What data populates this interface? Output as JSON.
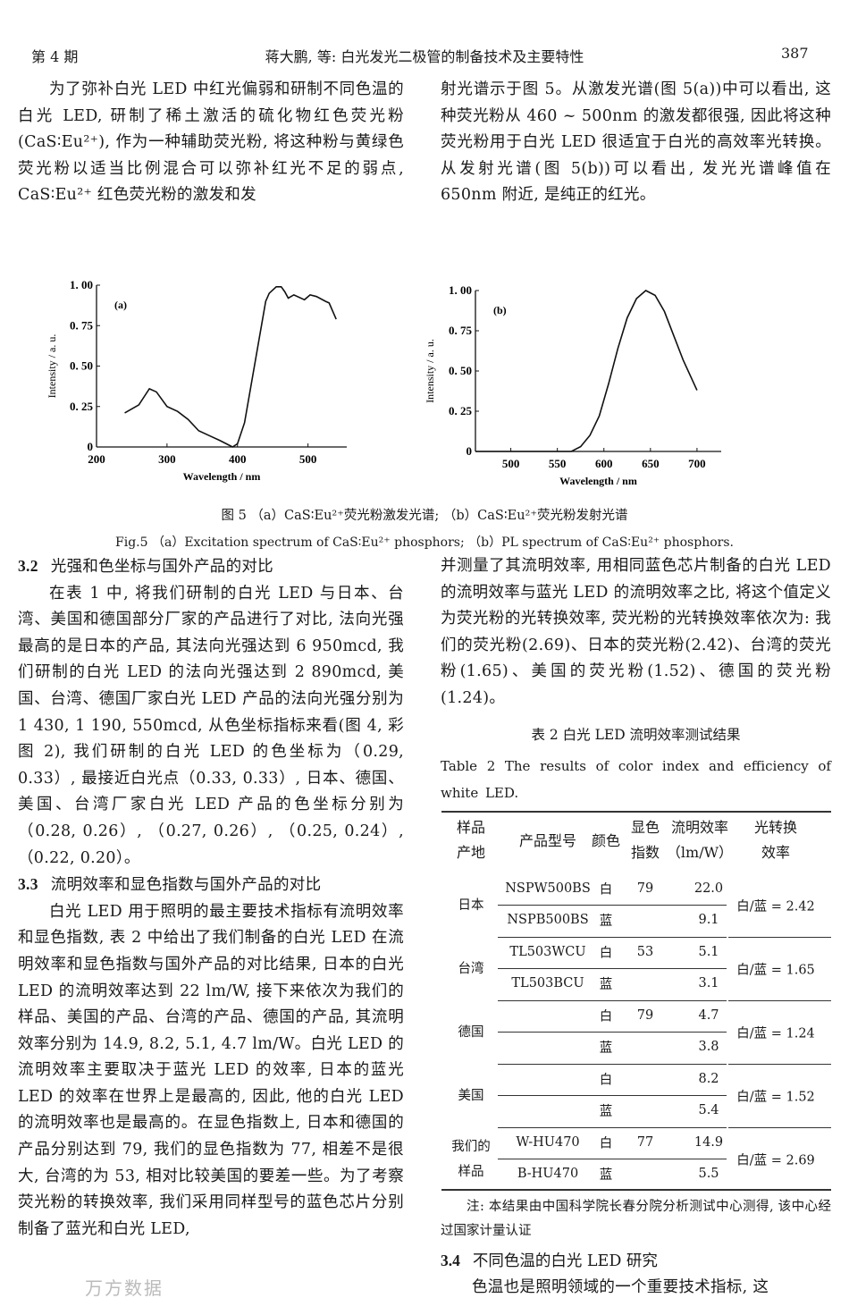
{
  "header": {
    "issue": "第 4 期",
    "title": "蒋大鹏, 等: 白光发光二极管的制备技术及主要特性",
    "page": "387"
  },
  "top": {
    "left": "为了弥补白光 LED 中红光偏弱和研制不同色温的白光 LED, 研制了稀土激活的硫化物红色荧光粉(CaS∶Eu²⁺), 作为一种辅助荧光粉, 将这种粉与黄绿色荧光粉以适当比例混合可以弥补红光不足的弱点, CaS∶Eu²⁺ 红色荧光粉的激发和发",
    "right": "射光谱示于图 5。从激发光谱(图 5(a))中可以看出, 这种荧光粉从 460 ~ 500nm 的激发都很强, 因此将这种荧光粉用于白光 LED 很适宜于白光的高效率光转换。从发射光谱(图 5(b))可以看出, 发光光谱峰值在 650nm 附近, 是纯正的红光。"
  },
  "chart_data": [
    {
      "type": "line",
      "panel_label": "(a)",
      "xlabel": "Wavelength / nm",
      "ylabel": "Intensity / a. u.",
      "xlim": [
        200,
        555
      ],
      "ylim": [
        0,
        1.0
      ],
      "xticks": [
        200,
        300,
        400,
        500
      ],
      "yticks": [
        "0",
        "0. 25",
        "0. 50",
        "0. 75",
        "1. 00"
      ],
      "grid": false,
      "x": [
        240,
        260,
        275,
        285,
        300,
        315,
        330,
        345,
        360,
        375,
        393,
        400,
        410,
        420,
        430,
        440,
        445,
        455,
        462,
        467,
        472,
        480,
        495,
        503,
        512,
        525,
        530,
        540
      ],
      "y": [
        0.21,
        0.26,
        0.36,
        0.34,
        0.25,
        0.22,
        0.17,
        0.1,
        0.07,
        0.04,
        0.0,
        0.02,
        0.15,
        0.4,
        0.65,
        0.9,
        0.95,
        0.99,
        0.99,
        0.96,
        0.92,
        0.94,
        0.91,
        0.94,
        0.93,
        0.9,
        0.89,
        0.79
      ]
    },
    {
      "type": "line",
      "panel_label": "(b)",
      "xlabel": "Wavelength / nm",
      "ylabel": "Intensity / a. u.",
      "xlim": [
        462,
        726
      ],
      "ylim": [
        0,
        1.0
      ],
      "xticks": [
        500,
        550,
        600,
        650,
        700
      ],
      "yticks": [
        "0",
        "0. 25",
        "0. 50",
        "0. 75",
        "1. 00"
      ],
      "grid": false,
      "x": [
        462,
        565,
        575,
        585,
        595,
        605,
        615,
        625,
        635,
        645,
        655,
        665,
        675,
        685,
        700
      ],
      "y": [
        0,
        0,
        0.03,
        0.1,
        0.22,
        0.42,
        0.64,
        0.83,
        0.95,
        1.0,
        0.97,
        0.87,
        0.72,
        0.57,
        0.38
      ]
    }
  ],
  "figure": {
    "caption_cn": "图 5 （a）CaS∶Eu²⁺荧光粉激发光谱; （b）CaS∶Eu²⁺荧光粉发射光谱",
    "caption_en": "Fig.5 （a）Excitation spectrum of CaS∶Eu²⁺ phosphors; （b）PL spectrum of CaS∶Eu²⁺ phosphors."
  },
  "left": {
    "s32_num": "3.2",
    "s32_title": "光强和色坐标与国外产品的对比",
    "s32_text": "在表 1 中, 将我们研制的白光 LED 与日本、台湾、美国和德国部分厂家的产品进行了对比, 法向光强最高的是日本的产品, 其法向光强达到 6 950mcd, 我们研制的白光 LED 的法向光强达到 2 890mcd, 美国、台湾、德国厂家白光 LED 产品的法向光强分别为1 430, 1 190, 550mcd, 从色坐标指标来看(图 4, 彩图 2), 我们研制的白光 LED 的色坐标为（0.29, 0.33）, 最接近白光点（0.33, 0.33）, 日本、德国、美国、台湾厂家白光 LED 产品的色坐标分别为（0.28, 0.26）, （0.27, 0.26）, （0.25, 0.24）, （0.22, 0.20）。",
    "s33_num": "3.3",
    "s33_title": "流明效率和显色指数与国外产品的对比",
    "s33_text": "白光 LED 用于照明的最主要技术指标有流明效率和显色指数, 表 2 中给出了我们制备的白光 LED 在流明效率和显色指数与国外产品的对比结果, 日本的白光 LED 的流明效率达到 22 lm/W, 接下来依次为我们的样品、美国的产品、台湾的产品、德国的产品, 其流明效率分别为 14.9, 8.2, 5.1, 4.7 lm/W。白光 LED 的流明效率主要取决于蓝光 LED 的效率, 日本的蓝光 LED 的效率在世界上是最高的, 因此, 他的白光 LED 的流明效率也是最高的。在显色指数上, 日本和德国的产品分别达到 79, 我们的显色指数为 77, 相差不是很大, 台湾的为 53, 相对比较美国的要差一些。为了考察荧光粉的转换效率, 我们采用同样型号的蓝色芯片分别制备了蓝光和白光 LED,"
  },
  "right": {
    "cont_text": "并测量了其流明效率, 用相同蓝色芯片制备的白光 LED 的流明效率与蓝光 LED 的流明效率之比, 将这个值定义为荧光粉的光转换效率, 荧光粉的光转换效率依次为: 我们的荧光粉(2.69)、日本的荧光粉(2.42)、台湾的荧光粉(1.65)、美国的荧光粉(1.52)、德国的荧光粉(1.24)。",
    "table_caption_cn": "表 2 白光 LED 流明效率测试结果",
    "table_caption_en": "Table 2 The results of color index and efficiency of white LED.",
    "note": "注: 本结果由中国科学院长春分院分析测试中心测得, 该中心经过国家计量认证",
    "s34_num": "3.4",
    "s34_title": "不同色温的白光 LED 研究",
    "s34_text": "色温也是照明领域的一个重要技术指标, 这"
  },
  "table": {
    "headers": [
      "样品\n产地",
      "产品型号",
      "颜色",
      "显色\n指数",
      "流明效率\n（lm/W）",
      "光转换\n效率"
    ],
    "groups": [
      {
        "origin": "日本",
        "conversion": "白/蓝 = 2.42",
        "rows": [
          [
            "NSPW500BS",
            "白",
            "79",
            "22.0"
          ],
          [
            "NSPB500BS",
            "蓝",
            "",
            "9.1"
          ]
        ]
      },
      {
        "origin": "台湾",
        "conversion": "白/蓝 = 1.65",
        "rows": [
          [
            "TL503WCU",
            "白",
            "53",
            "5.1"
          ],
          [
            "TL503BCU",
            "蓝",
            "",
            "3.1"
          ]
        ]
      },
      {
        "origin": "德国",
        "conversion": "白/蓝 = 1.24",
        "rows": [
          [
            "",
            "白",
            "79",
            "4.7"
          ],
          [
            "",
            "蓝",
            "",
            "3.8"
          ]
        ]
      },
      {
        "origin": "美国",
        "conversion": "白/蓝 = 1.52",
        "rows": [
          [
            "",
            "白",
            "",
            "8.2"
          ],
          [
            "",
            "蓝",
            "",
            "5.4"
          ]
        ]
      },
      {
        "origin": "我们的\n样品",
        "conversion": "白/蓝 = 2.69",
        "rows": [
          [
            "W-HU470",
            "白",
            "77",
            "14.9"
          ],
          [
            "B-HU470",
            "蓝",
            "",
            "5.5"
          ]
        ]
      }
    ]
  },
  "watermark": "万方数据"
}
